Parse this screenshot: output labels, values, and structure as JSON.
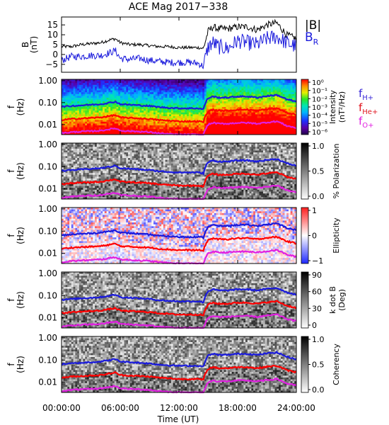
{
  "title": "ACE Mag 2017−338",
  "time_axis": {
    "label": "Time (UT)",
    "ticks": [
      "00:00:00",
      "06:00:00",
      "12:00:00",
      "18:00:00",
      "24:00:00"
    ],
    "tick_hours": [
      0,
      6,
      12,
      18,
      24
    ]
  },
  "field_panel": {
    "ylabel_main": "B",
    "ylabel_unit": "(nT)",
    "yticks": [
      "15",
      "10",
      "5",
      "0",
      "−5"
    ],
    "ytick_values": [
      15,
      10,
      5,
      0,
      -5
    ],
    "ylim": [
      -9,
      19
    ],
    "legend_total": "|B|",
    "legend_radial_main": "B",
    "legend_radial_sub": "R"
  },
  "spectro_axis": {
    "ylabel_main": "f",
    "ylabel_unit": "(Hz)",
    "yticks": [
      "1.00",
      "0.10",
      "0.01"
    ],
    "ytick_values": [
      1.0,
      0.1,
      0.01
    ],
    "ylim": [
      0.0035,
      1.15
    ]
  },
  "freq_legend": [
    {
      "main": "f",
      "sub": "H+",
      "color": "#3a28d8"
    },
    {
      "main": "f",
      "sub": "He+",
      "color": "#e0141e"
    },
    {
      "main": "f",
      "sub": "O+",
      "color": "#e020e0"
    }
  ],
  "colorbars": {
    "intensity": {
      "label_line1": "Intensity",
      "label_line2": "(nT²/Hz)",
      "ticks": [
        "10⁰",
        "10⁻¹",
        "10⁻²",
        "10⁻³",
        "10⁻⁴",
        "10⁻⁵",
        "10⁻⁶"
      ]
    },
    "polarization": {
      "label": "% Polarization",
      "ticks": [
        "1.0",
        "0.5",
        "0.0"
      ]
    },
    "ellipticity": {
      "label": "Ellipticity",
      "ticks": [
        "1",
        "0",
        "−1"
      ]
    },
    "kdotb": {
      "label_line1": "k dot B",
      "label_line2": "(Deg)",
      "ticks": [
        "90",
        "60",
        "30",
        "0"
      ]
    },
    "coherency": {
      "label": "Coherency",
      "ticks": [
        "1.0",
        "0.5",
        "0.0"
      ]
    }
  },
  "colors": {
    "total_field": "#000000",
    "radial_field": "#1a1adc",
    "f_h": "#1a1adc",
    "f_he": "#ff0000",
    "f_o": "#e020e0"
  },
  "chart_data": [
    {
      "type": "line",
      "x_unit": "hours (UT)",
      "x": [
        0,
        1,
        2,
        3,
        4,
        5,
        5.5,
        6,
        7,
        8,
        9,
        10,
        11,
        12,
        13,
        14,
        14.5,
        15,
        15.5,
        16,
        17,
        18,
        19,
        20,
        21,
        22,
        23,
        24
      ],
      "series": [
        {
          "name": "|B|",
          "values": [
            4,
            4,
            5,
            5.5,
            6,
            7.5,
            8,
            6,
            5,
            5,
            4.5,
            4,
            4,
            3.5,
            3.5,
            3.5,
            3,
            12,
            14,
            13,
            13,
            14,
            14,
            12.5,
            15,
            16,
            10,
            8
          ]
        },
        {
          "name": "B_R",
          "values": [
            -3,
            -1,
            -1,
            -0.5,
            -0.5,
            1,
            2,
            -2,
            -2.5,
            -2,
            -3,
            -3.5,
            -4,
            -4,
            -4,
            -4.5,
            -6,
            4,
            6,
            4,
            3,
            7,
            6,
            5,
            8,
            9,
            6,
            4
          ]
        }
      ],
      "ylabel": "B (nT)",
      "ylim": [
        -9,
        19
      ]
    },
    {
      "type": "heatmap",
      "name": "Intensity",
      "x_range": [
        0,
        24
      ],
      "y_range": [
        0.0035,
        1.15
      ],
      "y_scale": "log",
      "color_range": [
        1e-06,
        1
      ],
      "color_scale": "log"
    },
    {
      "type": "line",
      "x_unit": "hours (UT)",
      "x": [
        0,
        1,
        2,
        3,
        4,
        5,
        5.5,
        6,
        7,
        8,
        9,
        10,
        11,
        12,
        13,
        14,
        14.5,
        15,
        15.5,
        16,
        17,
        18,
        19,
        20,
        21,
        22,
        23,
        24
      ],
      "series": [
        {
          "name": "f_H+",
          "values": [
            0.065,
            0.07,
            0.075,
            0.08,
            0.085,
            0.1,
            0.11,
            0.085,
            0.08,
            0.075,
            0.07,
            0.062,
            0.058,
            0.055,
            0.055,
            0.055,
            0.05,
            0.16,
            0.19,
            0.17,
            0.17,
            0.19,
            0.19,
            0.17,
            0.2,
            0.22,
            0.14,
            0.11
          ]
        },
        {
          "name": "f_He+",
          "values": [
            0.016,
            0.018,
            0.019,
            0.02,
            0.021,
            0.025,
            0.027,
            0.021,
            0.02,
            0.019,
            0.018,
            0.016,
            0.015,
            0.014,
            0.014,
            0.014,
            0.013,
            0.04,
            0.048,
            0.043,
            0.043,
            0.048,
            0.048,
            0.043,
            0.05,
            0.055,
            0.035,
            0.028
          ]
        },
        {
          "name": "f_O+",
          "values": [
            0.004,
            0.0045,
            0.0048,
            0.005,
            0.0053,
            0.0062,
            0.0068,
            0.0053,
            0.005,
            0.0048,
            0.0045,
            0.004,
            0.0037,
            0.0035,
            0.0035,
            0.0035,
            0.0032,
            0.01,
            0.012,
            0.011,
            0.011,
            0.012,
            0.012,
            0.011,
            0.0125,
            0.014,
            0.0088,
            0.007
          ]
        }
      ],
      "y_scale": "log",
      "ylim": [
        0.0035,
        1.15
      ]
    }
  ]
}
